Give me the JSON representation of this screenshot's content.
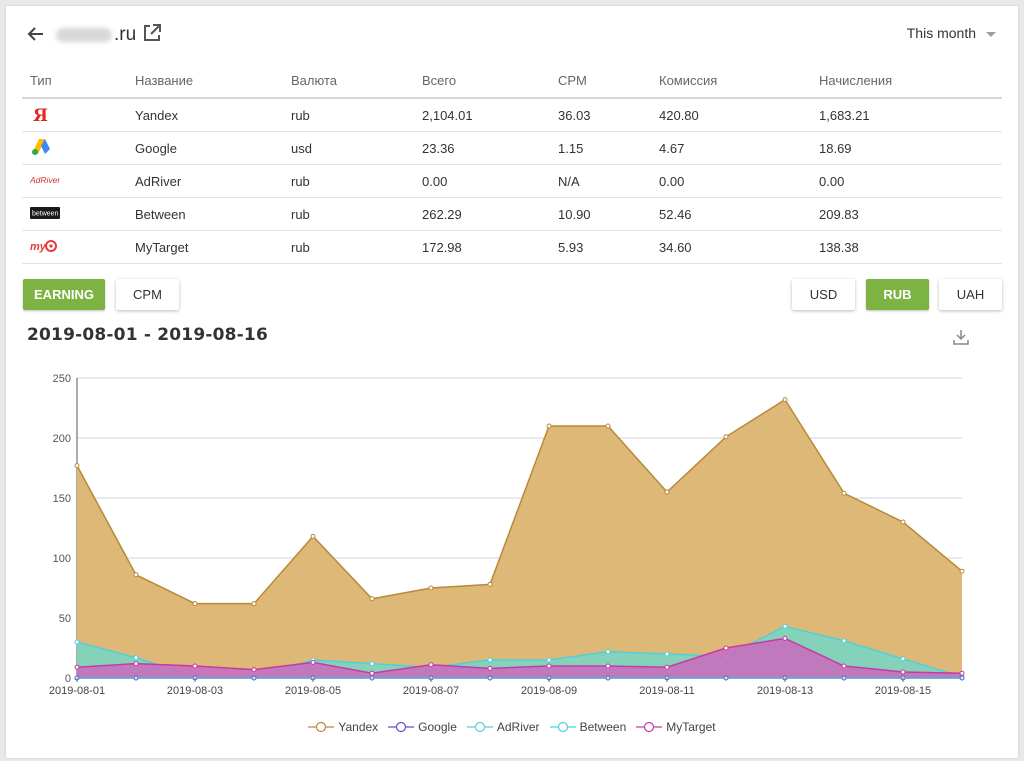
{
  "header": {
    "site_suffix": ".ru",
    "period_label": "This month"
  },
  "table": {
    "columns": [
      "Тип",
      "Название",
      "Валюта",
      "Всего",
      "CPM",
      "Комиссия",
      "Начисления"
    ],
    "rows": [
      {
        "logo": "yandex-logo",
        "name": "Yandex",
        "currency": "rub",
        "total": "2,104.01",
        "cpm": "36.03",
        "commission": "420.80",
        "accrual": "1,683.21"
      },
      {
        "logo": "google-adsense-logo",
        "name": "Google",
        "currency": "usd",
        "total": "23.36",
        "cpm": "1.15",
        "commission": "4.67",
        "accrual": "18.69"
      },
      {
        "logo": "adriver-logo",
        "name": "AdRiver",
        "currency": "rub",
        "total": "0.00",
        "cpm": "N/A",
        "commission": "0.00",
        "accrual": "0.00"
      },
      {
        "logo": "between-logo",
        "name": "Between",
        "currency": "rub",
        "total": "262.29",
        "cpm": "10.90",
        "commission": "52.46",
        "accrual": "209.83"
      },
      {
        "logo": "mytarget-logo",
        "name": "MyTarget",
        "currency": "rub",
        "total": "172.98",
        "cpm": "5.93",
        "commission": "34.60",
        "accrual": "138.38"
      }
    ],
    "logo_texts": {
      "yandex": "Я",
      "adriver": "AdRiver",
      "between": "between",
      "mytarget": "my"
    }
  },
  "controls": {
    "metric_buttons": [
      "EARNING",
      "CPM"
    ],
    "active_metric": "EARNING",
    "currency_buttons": [
      "USD",
      "RUB",
      "UAH"
    ],
    "active_currency": "RUB"
  },
  "chart_title": "2019-08-01 - 2019-08-16",
  "colors": {
    "accent_green": "#7cb342",
    "yandex_line": "#b8893a",
    "yandex_fill": "#deb876",
    "google_line": "#5b4fd6",
    "adriver_line": "#56cfd6",
    "between_line": "#4fd0d9",
    "between_fill": "#7fd3bf",
    "mytarget_line": "#c53aa5",
    "mytarget_fill": "#c86fbf"
  },
  "chart_data": {
    "type": "area",
    "title": "2019-08-01 - 2019-08-16",
    "x": [
      "2019-08-01",
      "2019-08-02",
      "2019-08-03",
      "2019-08-04",
      "2019-08-05",
      "2019-08-06",
      "2019-08-07",
      "2019-08-08",
      "2019-08-09",
      "2019-08-10",
      "2019-08-11",
      "2019-08-12",
      "2019-08-13",
      "2019-08-14",
      "2019-08-15",
      "2019-08-16"
    ],
    "x_tick_labels": [
      "2019-08-01",
      "2019-08-03",
      "2019-08-05",
      "2019-08-07",
      "2019-08-09",
      "2019-08-11",
      "2019-08-13",
      "2019-08-15"
    ],
    "y_ticks": [
      0,
      50,
      100,
      150,
      200,
      250
    ],
    "ylim": [
      0,
      250
    ],
    "grid": true,
    "legend_position": "bottom-center",
    "series": [
      {
        "name": "Yandex",
        "values": [
          177,
          86,
          62,
          62,
          118,
          66,
          75,
          78,
          210,
          210,
          155,
          201,
          232,
          154,
          130,
          89
        ]
      },
      {
        "name": "Google",
        "values": [
          0,
          0,
          0,
          0,
          0,
          0,
          0,
          0,
          0,
          0,
          0,
          0,
          0,
          0,
          0,
          0
        ]
      },
      {
        "name": "AdRiver",
        "values": [
          0,
          0,
          0,
          0,
          0,
          0,
          0,
          0,
          0,
          0,
          0,
          0,
          0,
          0,
          0,
          0
        ]
      },
      {
        "name": "Between",
        "values": [
          30,
          17,
          1,
          1,
          15,
          12,
          9,
          15,
          15,
          22,
          20,
          18,
          43,
          31,
          16,
          1
        ]
      },
      {
        "name": "MyTarget",
        "values": [
          9,
          12,
          10,
          7,
          13,
          4,
          11,
          8,
          10,
          10,
          9,
          25,
          33,
          10,
          5,
          4
        ]
      }
    ]
  }
}
